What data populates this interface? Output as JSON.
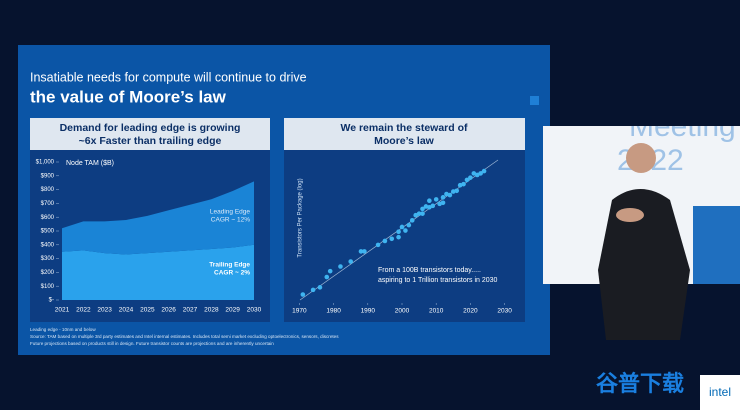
{
  "slide": {
    "title_line1": "Insatiable needs for compute will continue to drive",
    "title_line2": "the value of Moore’s law",
    "footnotes": [
      "Leading edge - 10nm and below",
      "Source: TAM based on multiple 3rd party estimates and Intel internal estimates. Includes total semi market excluding optoelectronics, sensors, discretes",
      "Future projections based on products still in design. Future transistor counts are projections and are inherently uncertain"
    ]
  },
  "stage": {
    "line1": "Meeting",
    "line2": "2022"
  },
  "watermark": "谷普下载",
  "logo": "intel",
  "chart_data": [
    {
      "type": "area",
      "stacked": true,
      "title": [
        "Demand for leading edge is growing",
        "~6x Faster than trailing edge"
      ],
      "ylabel": "Node TAM ($B)",
      "categories": [
        "2021",
        "2022",
        "2023",
        "2024",
        "2025",
        "2026",
        "2027",
        "2028",
        "2029",
        "2030"
      ],
      "series": [
        {
          "name": "Trailing Edge",
          "color": "#2aa2ec",
          "values": [
            350,
            360,
            340,
            330,
            340,
            350,
            360,
            370,
            380,
            400
          ]
        },
        {
          "name": "Leading Edge",
          "color": "#1a84d6",
          "values": [
            170,
            210,
            230,
            250,
            270,
            300,
            330,
            360,
            410,
            460
          ]
        }
      ],
      "annotations": [
        [
          "Leading Edge",
          "CAGR ~ 12%"
        ],
        [
          "Trailing Edge",
          "CAGR ~ 2%"
        ]
      ],
      "ylim": [
        0,
        1000
      ],
      "yticks": [
        {
          "value": 0,
          "label": "$-"
        },
        {
          "value": 100,
          "label": "$100"
        },
        {
          "value": 200,
          "label": "$200"
        },
        {
          "value": 300,
          "label": "$300"
        },
        {
          "value": 400,
          "label": "$400"
        },
        {
          "value": 500,
          "label": "$500"
        },
        {
          "value": 600,
          "label": "$600"
        },
        {
          "value": 700,
          "label": "$700"
        },
        {
          "value": 800,
          "label": "$800"
        },
        {
          "value": 900,
          "label": "$900"
        },
        {
          "value": 1000,
          "label": "$1,000"
        }
      ]
    },
    {
      "type": "scatter",
      "title": [
        "We remain the steward of",
        "Moore’s law"
      ],
      "ylabel": "Transistors Per Package (log)",
      "color": "#3fb4f0",
      "ylog": true,
      "x": [
        1971,
        1974,
        1976,
        1978,
        1979,
        1982,
        1985,
        1988,
        1989,
        1993,
        1995,
        1997,
        1999,
        1999,
        2000,
        2001,
        2002,
        2003,
        2004,
        2005,
        2006,
        2006,
        2007,
        2008,
        2008,
        2009,
        2010,
        2011,
        2012,
        2012,
        2013,
        2014,
        2015,
        2016,
        2017,
        2018,
        2019,
        2020,
        2021,
        2022,
        2023,
        2024
      ],
      "values": [
        2300,
        4500,
        6500,
        29000,
        68000,
        134000,
        275000,
        1200000,
        1200000,
        3100000,
        5500000,
        7500000,
        9500000,
        21000000,
        42000000,
        25000000,
        55000000,
        110000000,
        230000000,
        290000000,
        580000000,
        290000000,
        820000000,
        1900000000,
        730000000,
        900000000,
        2300000000,
        1200000000,
        1400000000,
        3100000000,
        5000000000,
        4300000000,
        7200000000,
        8000000000,
        18000000000,
        21000000000,
        39000000000,
        54000000000,
        100000000000,
        80000000000,
        100000000000,
        140000000000
      ],
      "annotation": [
        "From a 100B transistors today.....",
        "aspiring to 1 Trillion transistors in 2030"
      ],
      "xlim": [
        1969,
        2031
      ],
      "xticks": [
        1970,
        1980,
        1990,
        2000,
        2010,
        2020,
        2030
      ],
      "ylim": [
        500,
        3000000000000
      ]
    }
  ]
}
